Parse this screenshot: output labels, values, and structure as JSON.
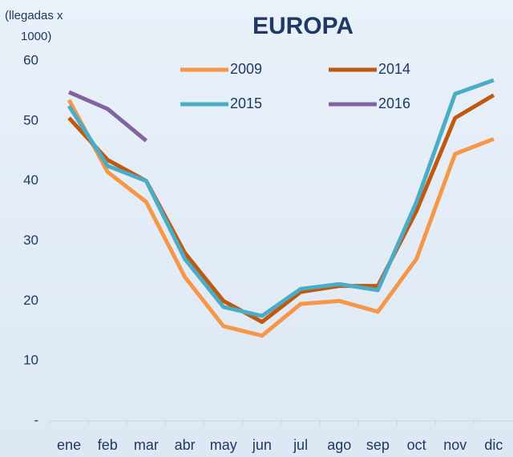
{
  "chart_data": {
    "type": "line",
    "title": "EUROPA",
    "y_label": "(llegadas x 1000)",
    "categories": [
      "ene",
      "feb",
      "mar",
      "abr",
      "may",
      "jun",
      "jul",
      "ago",
      "sep",
      "oct",
      "nov",
      "dic"
    ],
    "series": [
      {
        "name": "2009",
        "color": "#f79646",
        "values": [
          53.5,
          41.5,
          36.5,
          24,
          15.8,
          14.2,
          19.5,
          20,
          18.2,
          27,
          44.5,
          47
        ]
      },
      {
        "name": "2014",
        "color": "#c0590f",
        "values": [
          50.5,
          43.5,
          40,
          28,
          20,
          16.5,
          21.5,
          22.5,
          22.5,
          35,
          50.5,
          54.3
        ]
      },
      {
        "name": "2015",
        "color": "#4bacc6",
        "values": [
          52.5,
          42.5,
          40,
          27,
          19,
          17.5,
          22,
          22.8,
          21.8,
          36.5,
          54.5,
          56.8
        ]
      },
      {
        "name": "2016",
        "color": "#8064a2",
        "values": [
          54.8,
          52,
          46.7,
          null,
          null,
          null,
          null,
          null,
          null,
          null,
          null,
          null
        ]
      }
    ],
    "ylim": [
      0,
      60
    ],
    "yticks": [
      {
        "value": 0,
        "label": "-"
      },
      10,
      20,
      30,
      40,
      50,
      60
    ],
    "grid": false,
    "legend": "top"
  }
}
